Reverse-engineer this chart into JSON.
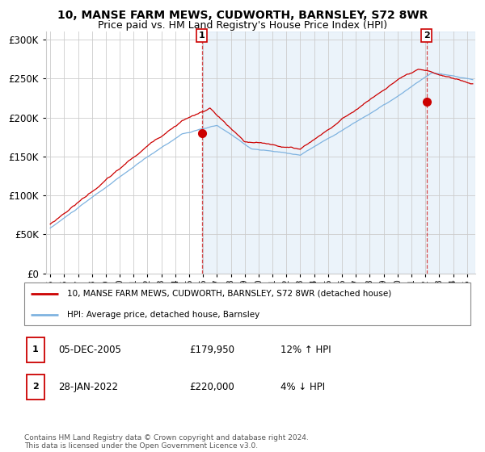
{
  "title1": "10, MANSE FARM MEWS, CUDWORTH, BARNSLEY, S72 8WR",
  "title2": "Price paid vs. HM Land Registry's House Price Index (HPI)",
  "ylim": [
    0,
    310000
  ],
  "yticks": [
    0,
    50000,
    100000,
    150000,
    200000,
    250000,
    300000
  ],
  "ytick_labels": [
    "£0",
    "£50K",
    "£100K",
    "£150K",
    "£200K",
    "£250K",
    "£300K"
  ],
  "hpi_color": "#7fb3e0",
  "price_color": "#cc0000",
  "sale1_yr": 2005.917,
  "sale1_price": 179950,
  "sale2_yr": 2022.083,
  "sale2_price": 220000,
  "sale1_label": "05-DEC-2005",
  "sale1_amount": "£179,950",
  "sale1_hpi": "12% ↑ HPI",
  "sale2_label": "28-JAN-2022",
  "sale2_amount": "£220,000",
  "sale2_hpi": "4% ↓ HPI",
  "legend1": "10, MANSE FARM MEWS, CUDWORTH, BARNSLEY, S72 8WR (detached house)",
  "legend2": "HPI: Average price, detached house, Barnsley",
  "footnote": "Contains HM Land Registry data © Crown copyright and database right 2024.\nThis data is licensed under the Open Government Licence v3.0.",
  "grid_color": "#cccccc",
  "title_fontsize": 10,
  "subtitle_fontsize": 9,
  "span_alpha": 0.15
}
